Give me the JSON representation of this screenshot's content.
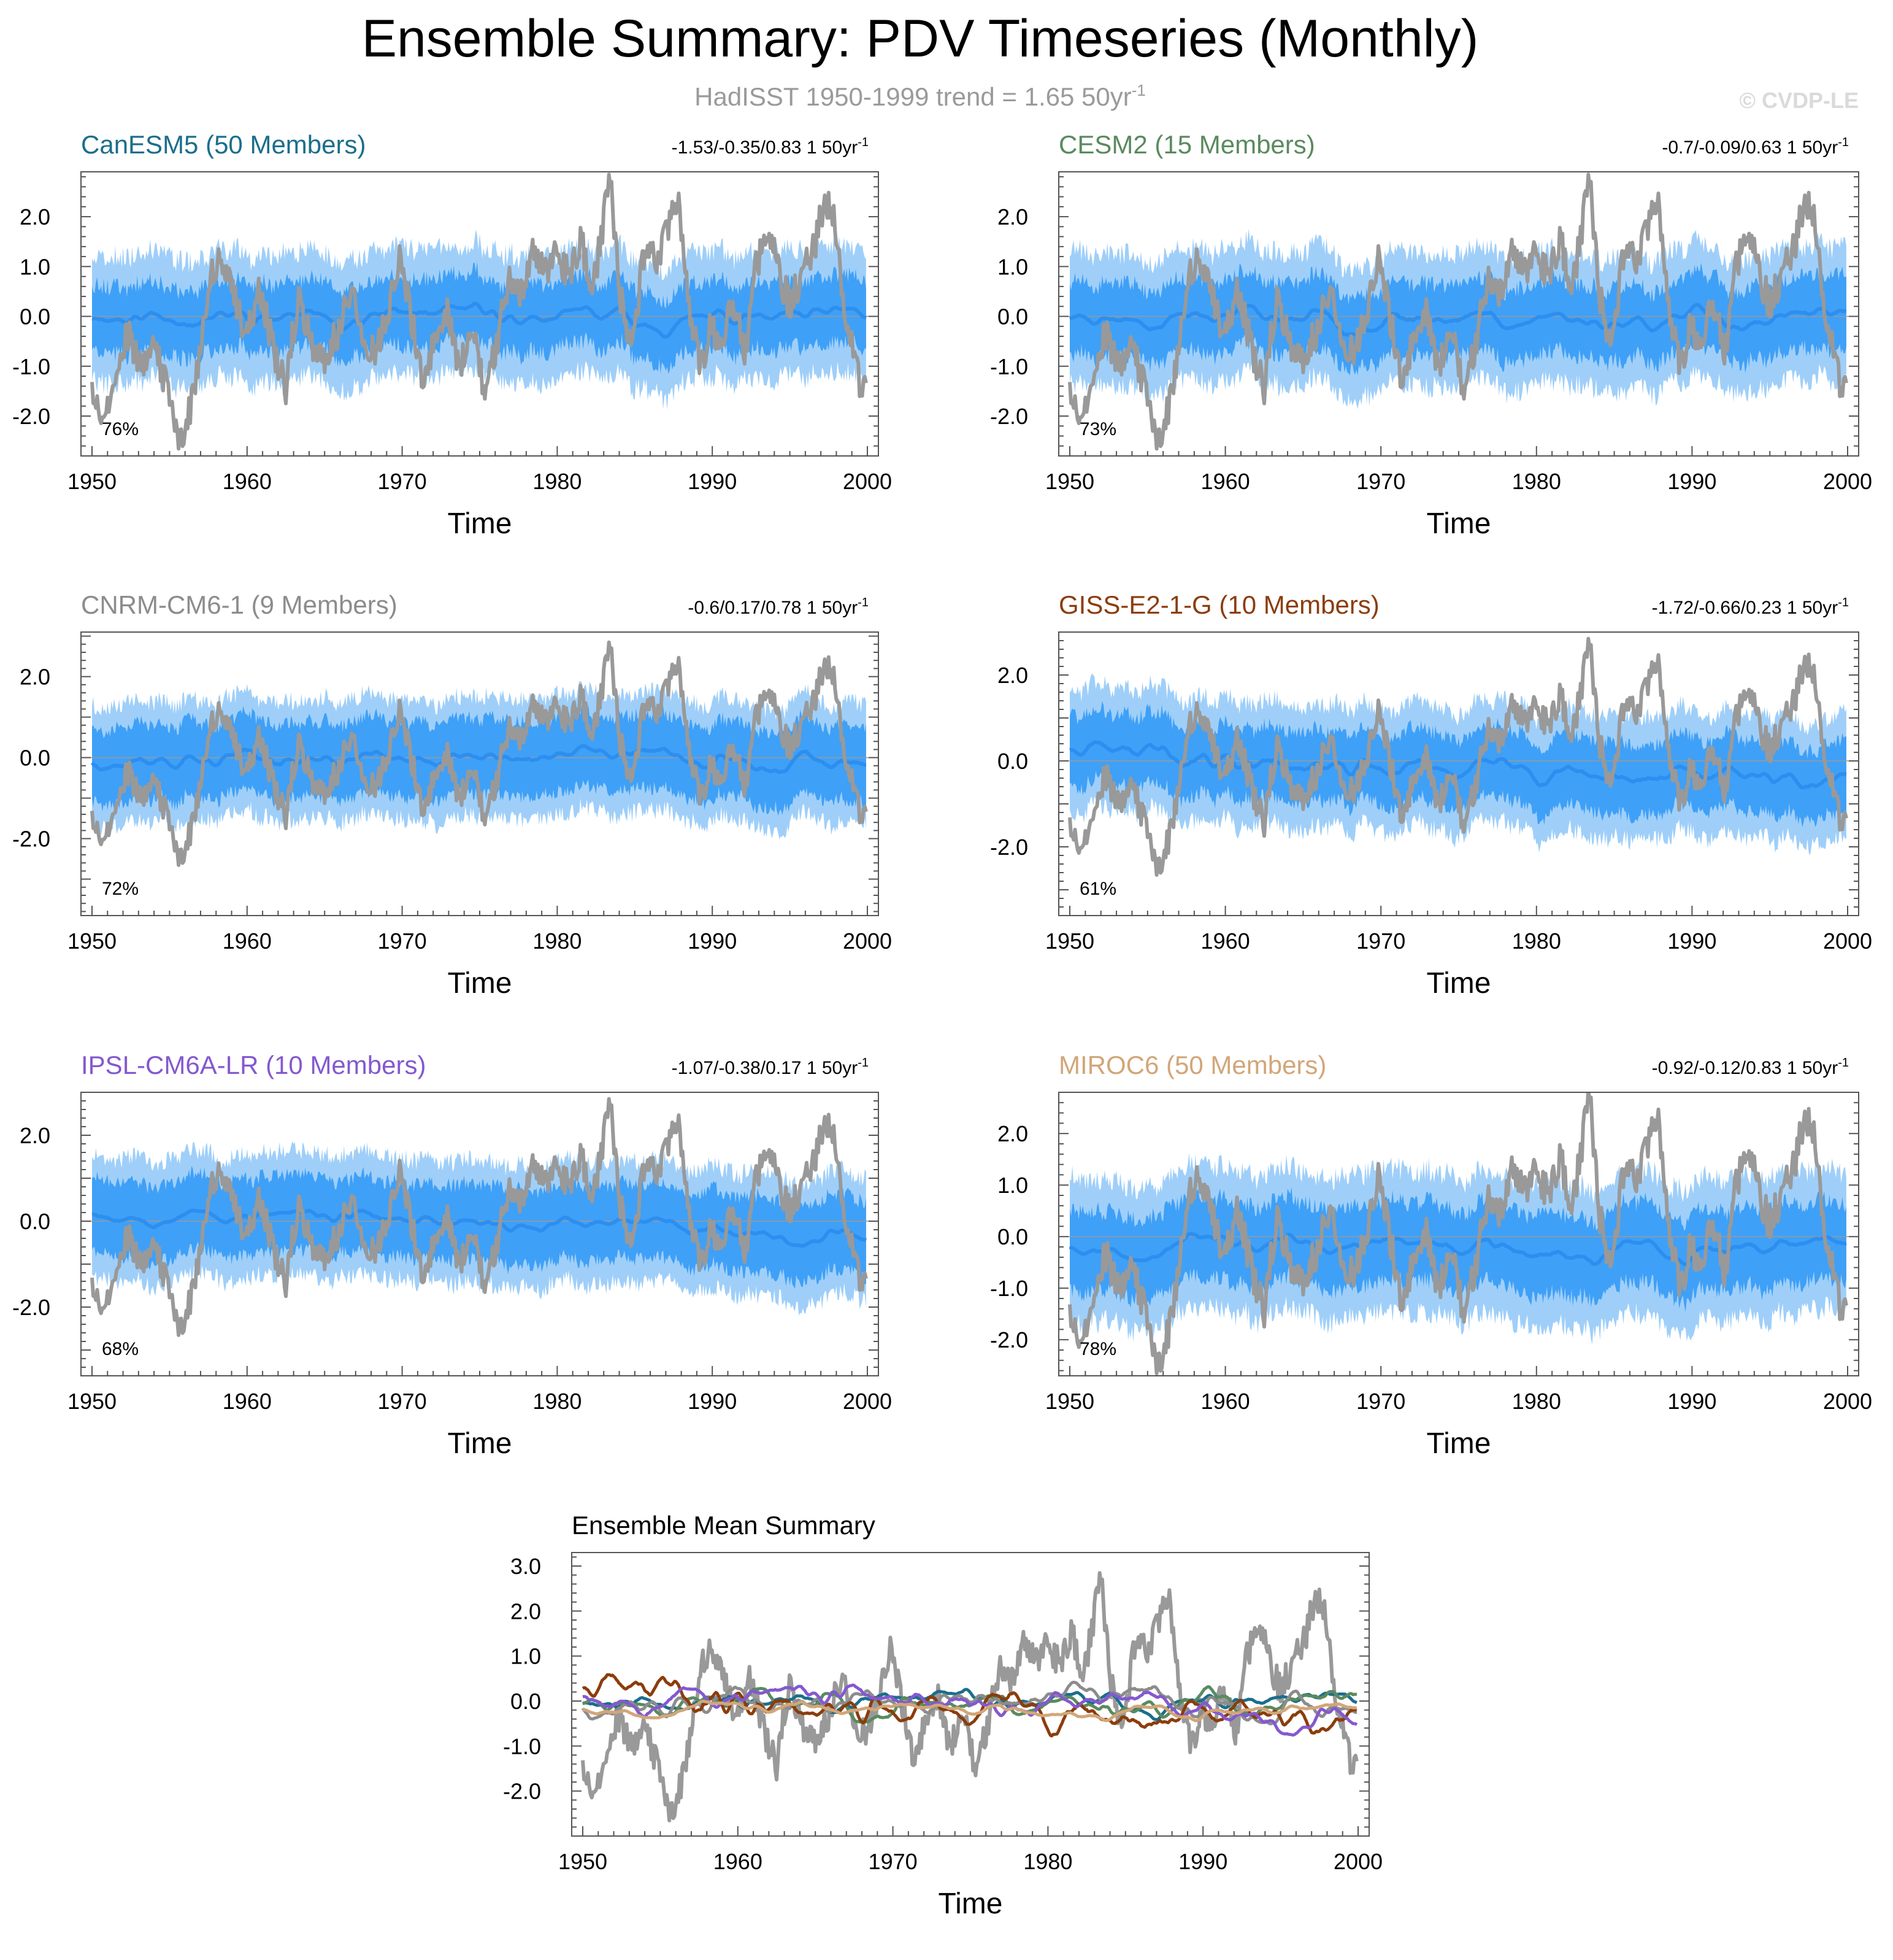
{
  "figure": {
    "title": "Ensemble Summary: PDV Timeseries (Monthly)",
    "subtitle": "HadISST 1950-1999 trend = 1.65 50yr",
    "subtitle_sup": "-1",
    "watermark": "© CVDP-LE"
  },
  "colors": {
    "obs": "#999999",
    "ens_mean": "#2c8ff0",
    "band_inner": "#3fa0f7",
    "band_outer": "#9fcff9",
    "axis": "#000000",
    "zero_line": "#9a9a9a"
  },
  "chart_data": [
    {
      "type": "line",
      "title": "CanESM5 (50 Members)",
      "title_color": "#1b6e8c",
      "trend_text": "-1.53/-0.35/0.83 1 50yr",
      "trend_sup": "-1",
      "pct_label": "76%",
      "xlabel": "Time",
      "xlim": [
        1950,
        2000
      ],
      "xticks": [
        "1950",
        "1960",
        "1970",
        "1980",
        "1990",
        "2000"
      ],
      "ylim": [
        -2.8,
        2.9
      ],
      "yticks": [
        {
          "v": 2.0,
          "l": "2.0"
        },
        {
          "v": 1.0,
          "l": "1.0"
        },
        {
          "v": 0.0,
          "l": "0.0"
        },
        {
          "v": -1.0,
          "l": "-1.0"
        },
        {
          "v": -2.0,
          "l": "-2.0"
        }
      ],
      "member_spread": {
        "outer": 1.05,
        "inner": 0.5
      },
      "ensemble_mean_trend": [
        0.05,
        -0.1
      ],
      "seed": 11
    },
    {
      "type": "line",
      "title": "CESM2 (15 Members)",
      "title_color": "#5a8a5f",
      "trend_text": "-0.7/-0.09/0.63 1 50yr",
      "trend_sup": "-1",
      "pct_label": "73%",
      "xlabel": "Time",
      "xlim": [
        1950,
        2000
      ],
      "xticks": [
        "1950",
        "1960",
        "1970",
        "1980",
        "1990",
        "2000"
      ],
      "ylim": [
        -2.8,
        2.9
      ],
      "yticks": [
        {
          "v": 2.0,
          "l": "2.0"
        },
        {
          "v": 1.0,
          "l": "1.0"
        },
        {
          "v": 0.0,
          "l": "0.0"
        },
        {
          "v": -1.0,
          "l": "-1.0"
        },
        {
          "v": -2.0,
          "l": "-2.0"
        }
      ],
      "member_spread": {
        "outer": 1.1,
        "inner": 0.55
      },
      "ensemble_mean_trend": [
        0.0,
        -0.05
      ],
      "seed": 23
    },
    {
      "type": "line",
      "title": "CNRM-CM6-1 (9 Members)",
      "title_color": "#8c8c8c",
      "trend_text": "-0.6/0.17/0.78 1 50yr",
      "trend_sup": "-1",
      "pct_label": "72%",
      "xlabel": "Time",
      "xlim": [
        1950,
        2000
      ],
      "xticks": [
        "1950",
        "1960",
        "1970",
        "1980",
        "1990",
        "2000"
      ],
      "ylim": [
        -3.9,
        3.1
      ],
      "yticks": [
        {
          "v": 2.0,
          "l": "2.0"
        },
        {
          "v": 0.0,
          "l": "0.0"
        },
        {
          "v": -2.0,
          "l": "-2.0"
        }
      ],
      "member_spread": {
        "outer": 1.25,
        "inner": 0.75
      },
      "ensemble_mean_trend": [
        -0.05,
        0.0
      ],
      "seed": 37
    },
    {
      "type": "line",
      "title": "GISS-E2-1-G (10 Members)",
      "title_color": "#8b3d0c",
      "trend_text": "-1.72/-0.66/0.23 1 50yr",
      "trend_sup": "-1",
      "pct_label": "61%",
      "xlabel": "Time",
      "xlim": [
        1950,
        2000
      ],
      "xticks": [
        "1950",
        "1960",
        "1970",
        "1980",
        "1990",
        "2000"
      ],
      "ylim": [
        -3.6,
        3.0
      ],
      "yticks": [
        {
          "v": 2.0,
          "l": "2.0"
        },
        {
          "v": 0.0,
          "l": "0.0"
        },
        {
          "v": -2.0,
          "l": "-2.0"
        }
      ],
      "member_spread": {
        "outer": 1.2,
        "inner": 0.65
      },
      "ensemble_mean_trend": [
        0.2,
        -0.5
      ],
      "seed": 41
    },
    {
      "type": "line",
      "title": "IPSL-CM6A-LR (10 Members)",
      "title_color": "#8459cf",
      "trend_text": "-1.07/-0.38/0.17 1 50yr",
      "trend_sup": "-1",
      "pct_label": "68%",
      "xlabel": "Time",
      "xlim": [
        1950,
        2000
      ],
      "xticks": [
        "1950",
        "1960",
        "1970",
        "1980",
        "1990",
        "2000"
      ],
      "ylim": [
        -3.6,
        3.0
      ],
      "yticks": [
        {
          "v": 2.0,
          "l": "2.0"
        },
        {
          "v": 0.0,
          "l": "0.0"
        },
        {
          "v": -2.0,
          "l": "-2.0"
        }
      ],
      "member_spread": {
        "outer": 1.2,
        "inner": 0.7
      },
      "ensemble_mean_trend": [
        0.25,
        -0.3
      ],
      "seed": 53
    },
    {
      "type": "line",
      "title": "MIROC6 (50 Members)",
      "title_color": "#d2a679",
      "trend_text": "-0.92/-0.12/0.83 1 50yr",
      "trend_sup": "-1",
      "pct_label": "78%",
      "xlabel": "Time",
      "xlim": [
        1950,
        2000
      ],
      "xticks": [
        "1950",
        "1960",
        "1970",
        "1980",
        "1990",
        "2000"
      ],
      "ylim": [
        -2.7,
        2.8
      ],
      "yticks": [
        {
          "v": 2.0,
          "l": "2.0"
        },
        {
          "v": 1.0,
          "l": "1.0"
        },
        {
          "v": 0.0,
          "l": "0.0"
        },
        {
          "v": -1.0,
          "l": "-1.0"
        },
        {
          "v": -2.0,
          "l": "-2.0"
        }
      ],
      "member_spread": {
        "outer": 1.15,
        "inner": 0.6
      },
      "ensemble_mean_trend": [
        -0.15,
        -0.2
      ],
      "seed": 67
    },
    {
      "type": "line",
      "title": "Ensemble Mean Summary",
      "title_color": "#000000",
      "xlabel": "Time",
      "xlim": [
        1950,
        2000
      ],
      "xticks": [
        "1950",
        "1960",
        "1970",
        "1980",
        "1990",
        "2000"
      ],
      "ylim": [
        -3.0,
        3.3
      ],
      "yticks": [
        {
          "v": 3.0,
          "l": "3.0"
        },
        {
          "v": 2.0,
          "l": "2.0"
        },
        {
          "v": 1.0,
          "l": "1.0"
        },
        {
          "v": 0.0,
          "l": "0.0"
        },
        {
          "v": -1.0,
          "l": "-1.0"
        },
        {
          "v": -2.0,
          "l": "-2.0"
        }
      ],
      "series": [
        {
          "name": "CanESM5",
          "color": "#1b6e8c",
          "seed": 11,
          "amp": 0.35,
          "trend": [
            0.05,
            -0.1
          ]
        },
        {
          "name": "CESM2",
          "color": "#5a8a5f",
          "seed": 23,
          "amp": 0.45,
          "trend": [
            0.0,
            -0.05
          ]
        },
        {
          "name": "CNRM-CM6-1",
          "color": "#8c8c8c",
          "seed": 37,
          "amp": 0.5,
          "trend": [
            -0.05,
            0.0
          ]
        },
        {
          "name": "GISS-E2-1-G",
          "color": "#8b3d0c",
          "seed": 41,
          "amp": 0.55,
          "trend": [
            0.2,
            -0.5
          ]
        },
        {
          "name": "IPSL-CM6A-LR",
          "color": "#8459cf",
          "seed": 53,
          "amp": 0.55,
          "trend": [
            0.25,
            -0.3
          ]
        },
        {
          "name": "MIROC6",
          "color": "#d2a679",
          "seed": 67,
          "amp": 0.25,
          "trend": [
            -0.15,
            -0.2
          ]
        }
      ]
    }
  ],
  "observations": {
    "name": "HadISST",
    "anchors": [
      [
        1950.0,
        -1.4
      ],
      [
        1950.6,
        -2.2
      ],
      [
        1951.5,
        -1.2
      ],
      [
        1952.3,
        -0.3
      ],
      [
        1953.2,
        -1.0
      ],
      [
        1954.0,
        -0.5
      ],
      [
        1955.2,
        -1.9
      ],
      [
        1955.8,
        -2.6
      ],
      [
        1956.6,
        -1.4
      ],
      [
        1957.2,
        -0.2
      ],
      [
        1957.9,
        1.1
      ],
      [
        1958.6,
        0.9
      ],
      [
        1959.3,
        0.3
      ],
      [
        1960.0,
        -0.4
      ],
      [
        1960.8,
        0.6
      ],
      [
        1961.8,
        -0.8
      ],
      [
        1962.5,
        -1.4
      ],
      [
        1963.3,
        0.4
      ],
      [
        1964.1,
        -0.5
      ],
      [
        1965.0,
        -0.9
      ],
      [
        1966.0,
        -0.2
      ],
      [
        1966.8,
        0.7
      ],
      [
        1967.5,
        -0.6
      ],
      [
        1968.3,
        -0.8
      ],
      [
        1969.2,
        0.3
      ],
      [
        1969.8,
        1.2
      ],
      [
        1970.5,
        0.2
      ],
      [
        1971.3,
        -1.4
      ],
      [
        1972.1,
        -0.4
      ],
      [
        1972.9,
        0.1
      ],
      [
        1973.7,
        -1.1
      ],
      [
        1974.5,
        -0.2
      ],
      [
        1975.3,
        -1.5
      ],
      [
        1976.0,
        -0.7
      ],
      [
        1976.8,
        0.7
      ],
      [
        1977.6,
        0.5
      ],
      [
        1978.4,
        1.2
      ],
      [
        1979.2,
        0.9
      ],
      [
        1980.0,
        1.3
      ],
      [
        1980.8,
        0.8
      ],
      [
        1981.5,
        1.6
      ],
      [
        1982.2,
        0.4
      ],
      [
        1982.8,
        1.5
      ],
      [
        1983.4,
        2.85
      ],
      [
        1984.0,
        0.5
      ],
      [
        1984.8,
        -0.6
      ],
      [
        1985.6,
        1.2
      ],
      [
        1986.4,
        1.1
      ],
      [
        1987.2,
        1.9
      ],
      [
        1987.8,
        2.3
      ],
      [
        1988.5,
        0.3
      ],
      [
        1989.2,
        -1.1
      ],
      [
        1989.9,
        -0.2
      ],
      [
        1990.6,
        -0.5
      ],
      [
        1991.3,
        0.4
      ],
      [
        1992.1,
        -0.8
      ],
      [
        1992.8,
        0.9
      ],
      [
        1993.5,
        1.9
      ],
      [
        1994.2,
        1.0
      ],
      [
        1995.0,
        0.2
      ],
      [
        1995.8,
        0.9
      ],
      [
        1996.6,
        1.4
      ],
      [
        1997.2,
        2.3
      ],
      [
        1997.8,
        2.1
      ],
      [
        1998.4,
        0.4
      ],
      [
        1999.0,
        -0.4
      ],
      [
        1999.6,
        -1.6
      ],
      [
        2000.0,
        -1.1
      ]
    ]
  }
}
